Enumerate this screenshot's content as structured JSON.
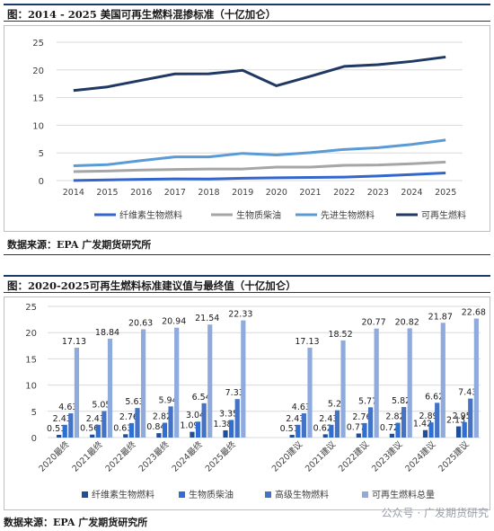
{
  "chart_data": [
    {
      "type": "line",
      "title": "图：2014 - 2025 美国可再生燃料混掺标准（十亿加仑）",
      "source": "数据来源：EPA 广发期货研究所",
      "x": [
        "2014",
        "2015",
        "2016",
        "2017",
        "2018",
        "2019",
        "2020",
        "2021",
        "2022",
        "2023",
        "2024",
        "2025"
      ],
      "ylim": [
        0,
        25
      ],
      "yticks": [
        0,
        5,
        10,
        15,
        20,
        25
      ],
      "grid": true,
      "legend_position": "bottom",
      "series": [
        {
          "name": "纤维素生物燃料",
          "color": "#3366cc",
          "values": [
            0.03,
            0.12,
            0.23,
            0.31,
            0.29,
            0.42,
            0.51,
            0.56,
            0.63,
            0.84,
            1.09,
            1.38
          ]
        },
        {
          "name": "生物质柴油",
          "color": "#a6a6a6",
          "values": [
            1.63,
            1.73,
            1.9,
            2.0,
            2.1,
            2.1,
            2.43,
            2.43,
            2.76,
            2.82,
            3.04,
            3.35
          ]
        },
        {
          "name": "先进生物燃料",
          "color": "#5b9bd5",
          "values": [
            2.67,
            2.88,
            3.61,
            4.28,
            4.29,
            4.92,
            4.63,
            5.05,
            5.63,
            5.94,
            6.54,
            7.33
          ]
        },
        {
          "name": "可再生燃料",
          "color": "#1f3864",
          "values": [
            16.28,
            16.93,
            18.11,
            19.28,
            19.29,
            19.92,
            17.13,
            18.84,
            20.63,
            20.94,
            21.54,
            22.33
          ]
        }
      ]
    },
    {
      "type": "bar",
      "title": "图：2020-2025可再生燃料标准建议值与最终值（十亿加仑）",
      "source": "数据来源：EPA 广发期货研究所",
      "watermark": "公众号 · 广发期货研究",
      "categories": [
        "2020最终",
        "2021最终",
        "2022最终",
        "2023最终",
        "2024最终",
        "2025最终",
        "",
        "2020建议",
        "2021建议",
        "2022建议",
        "2023建议",
        "2024建议",
        "2025建议"
      ],
      "ylim": [
        0,
        25
      ],
      "yticks": [
        0,
        5,
        10,
        15,
        20,
        25
      ],
      "grid": true,
      "legend_position": "bottom",
      "series": [
        {
          "name": "纤维素生物燃料",
          "color": "#1f4e9a",
          "values": [
            0.51,
            0.56,
            0.63,
            0.84,
            1.09,
            1.38,
            null,
            0.51,
            0.62,
            0.77,
            0.72,
            1.42,
            2.13
          ]
        },
        {
          "name": "生物质柴油",
          "color": "#2e6fd1",
          "values": [
            2.43,
            2.43,
            2.76,
            2.82,
            3.04,
            3.35,
            null,
            2.43,
            2.43,
            2.76,
            2.82,
            2.89,
            2.95
          ]
        },
        {
          "name": "高级生物燃料",
          "color": "#4472c4",
          "values": [
            4.63,
            5.05,
            5.63,
            5.94,
            6.54,
            7.33,
            null,
            4.63,
            5.2,
            5.77,
            5.82,
            6.62,
            7.43
          ]
        },
        {
          "name": "可再生燃料总量",
          "color": "#8faadc",
          "values": [
            17.13,
            18.84,
            20.63,
            20.94,
            21.54,
            22.33,
            null,
            17.13,
            18.52,
            20.77,
            20.82,
            21.87,
            22.68
          ]
        }
      ],
      "labels": {
        "纤维素生物燃料": [
          "0.51",
          "0.56",
          "0.63",
          "0.84",
          "1.09",
          "1.38",
          "",
          "0.51",
          "0.62",
          "0.77",
          "0.72",
          "1.42",
          "2.13"
        ],
        "生物质柴油": [
          "2.43",
          "2.43",
          "2.76",
          "2.82",
          "3.04",
          "3.35",
          "",
          "2.43",
          "2.43",
          "2.76",
          "2.82",
          "2.89",
          "2.95"
        ],
        "高级生物燃料": [
          "4.63",
          "5.05",
          "5.63",
          "5.94",
          "6.54",
          "7.33",
          "",
          "4.63",
          "5.2",
          "5.77",
          "5.82",
          "6.62",
          "7.43"
        ],
        "可再生燃料总量": [
          "17.13",
          "18.84",
          "20.63",
          "20.94",
          "21.54",
          "22.33",
          "",
          "17.13",
          "18.52",
          "20.77",
          "20.82",
          "21.87",
          "22.68"
        ]
      }
    }
  ]
}
